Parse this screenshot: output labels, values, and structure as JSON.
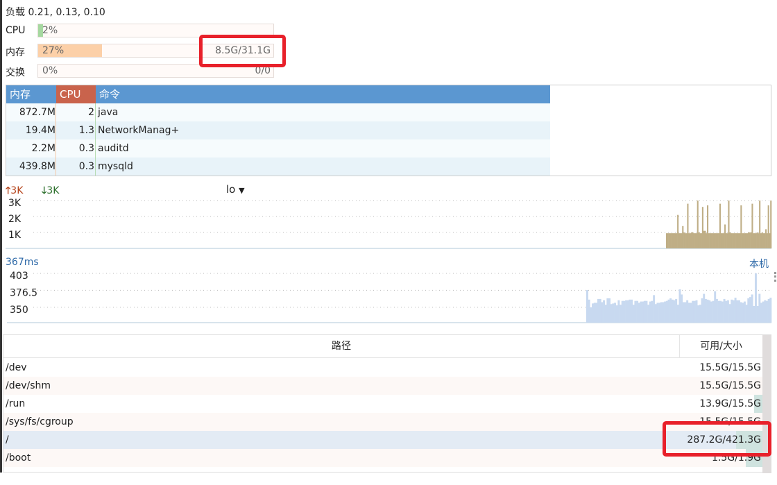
{
  "load": {
    "label": "负载",
    "value": "0.21, 0.13, 0.10"
  },
  "cpu": {
    "label": "CPU",
    "percent_text": "2%",
    "fraction": 0.02,
    "color": "#a6d8a0"
  },
  "memory": {
    "label": "内存",
    "percent_text": "27%",
    "fraction": 0.27,
    "amount": "8.5G/31.1G",
    "color": "#fcd0a8"
  },
  "swap": {
    "label": "交换",
    "percent_text": "0%",
    "fraction": 0,
    "amount": "0/0"
  },
  "process_table": {
    "headers": {
      "mem": "内存",
      "cpu": "CPU",
      "cmd": "命令"
    },
    "header_colors": {
      "mem": "#5b97d1",
      "cpu": "#c9634c",
      "cmd": "#5b97d1"
    },
    "rows": [
      {
        "mem": "872.7M",
        "cpu": "2",
        "cmd": "java"
      },
      {
        "mem": "19.4M",
        "cpu": "1.3",
        "cmd": "NetworkManag+"
      },
      {
        "mem": "2.2M",
        "cpu": "0.3",
        "cmd": "auditd"
      },
      {
        "mem": "439.8M",
        "cpu": "0.3",
        "cmd": "mysqld"
      }
    ]
  },
  "network": {
    "up": "3K",
    "down": "3K",
    "interface": "lo",
    "up_color": "#b5431a",
    "down_color": "#2a6e2a"
  },
  "chart_data": [
    {
      "type": "bar",
      "ylim": [
        0,
        3
      ],
      "ytick_labels": [
        "3K",
        "2K",
        "1K"
      ],
      "yticks": [
        3,
        2,
        1
      ],
      "color": "#bfae86",
      "values": [
        0.95,
        0.95,
        0.95,
        0.95,
        0.95,
        0.95,
        0.95,
        0.95,
        0.95,
        2.1,
        0.95,
        0.95,
        0.95,
        1.4,
        1.0,
        0.95,
        0.95,
        2.8,
        0.95,
        0.95,
        1.0,
        1.0,
        0.95,
        0.95,
        0.95,
        3.0,
        1.0,
        0.95,
        0.95,
        2.6,
        1.1,
        1.1,
        0.95,
        2.7,
        0.95,
        0.95,
        0.95,
        0.95,
        0.95,
        0.95,
        0.95,
        0.95,
        0.95,
        2.8,
        0.95,
        0.95,
        0.95,
        1.5,
        0.95,
        0.95,
        3.0,
        1.0,
        0.95,
        0.95,
        0.95,
        0.95,
        0.95,
        0.95,
        0.95,
        0.95,
        2.7,
        0.95,
        0.95,
        0.95,
        0.95,
        0.95,
        1.0,
        1.0,
        1.0,
        2.8,
        0.95,
        0.95,
        0.95,
        1.0,
        0.95,
        3.0,
        0.95,
        1.0,
        0.95,
        0.95,
        1.2,
        0.95,
        2.7,
        0.95,
        3.0
      ]
    },
    {
      "type": "bar",
      "title": "367ms",
      "right_label": "本机",
      "ylim": [
        326,
        403
      ],
      "ytick_labels": [
        "403",
        "376.5",
        "350"
      ],
      "yticks": [
        403,
        376.5,
        350
      ],
      "color": "#c8d9f0",
      "values": [
        377,
        362,
        350,
        356,
        357,
        357,
        363,
        363,
        358,
        361,
        354,
        364,
        364,
        355,
        356,
        357,
        353,
        361,
        354,
        360,
        360,
        361,
        361,
        362,
        362,
        354,
        360,
        360,
        357,
        359,
        359,
        360,
        360,
        354,
        359,
        360,
        369,
        355,
        357,
        357,
        358,
        358,
        359,
        360,
        362,
        364,
        362,
        361,
        363,
        354,
        378,
        370,
        358,
        358,
        361,
        357,
        357,
        360,
        360,
        361,
        353,
        354,
        364,
        371,
        363,
        362,
        361,
        359,
        360,
        375,
        363,
        360,
        360,
        359,
        363,
        360,
        361,
        355,
        362,
        361,
        365,
        361,
        361,
        358,
        357,
        359,
        354,
        364,
        366,
        370,
        352,
        403,
        352,
        371,
        357,
        359,
        361,
        360,
        363,
        365
      ]
    }
  ],
  "disk_table": {
    "headers": {
      "path": "路径",
      "size": "可用/大小"
    },
    "rows": [
      {
        "path": "/dev",
        "size": "15.5G/15.5G",
        "used": 0.0
      },
      {
        "path": "/dev/shm",
        "size": "15.5G/15.5G",
        "used": 0.0
      },
      {
        "path": "/run",
        "size": "13.9G/15.5G",
        "used": 0.1
      },
      {
        "path": "/sys/fs/cgroup",
        "size": "15.5G/15.5G",
        "used": 0.0
      },
      {
        "path": "/",
        "size": "287.2G/421.3G",
        "used": 0.32,
        "selected": true
      },
      {
        "path": "/boot",
        "size": "1.5G/1.9G",
        "used": 0.2
      }
    ]
  }
}
